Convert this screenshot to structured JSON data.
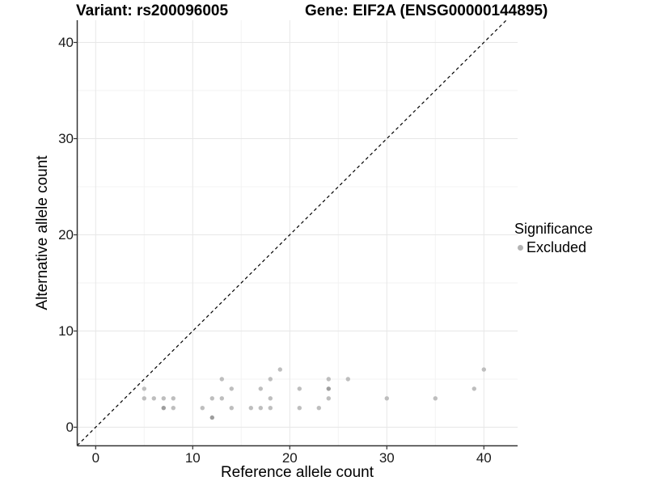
{
  "header": {
    "title_left": "Variant: rs200096005",
    "title_right": "Gene: EIF2A (ENSG00000144895)"
  },
  "chart_data": {
    "type": "scatter",
    "xlabel": "Reference allele count",
    "ylabel": "Alternative allele count",
    "xlim": [
      -1.9,
      43.5
    ],
    "ylim": [
      -1.95,
      42.3
    ],
    "x_ticks": [
      0,
      10,
      20,
      30,
      40
    ],
    "y_ticks": [
      0,
      10,
      20,
      30,
      40
    ],
    "x_minor_gridlines": [
      5,
      15,
      25,
      35
    ],
    "y_minor_gridlines": [
      5,
      15,
      25,
      35
    ],
    "grid": {
      "major_color": "#e7e7e7",
      "minor_color": "#f3f3f3",
      "background": "#ffffff"
    },
    "identity_line": {
      "equation": "y = x",
      "style": "dashed",
      "color": "#000000"
    },
    "series": [
      {
        "name": "Excluded",
        "color": "#bebebe",
        "overlap_color": "#9d9d9d",
        "points_note": "[x, y, n] where n=2 means visibly darker overplotted dot",
        "points": [
          [
            5,
            4,
            1
          ],
          [
            5,
            3,
            1
          ],
          [
            6,
            3,
            1
          ],
          [
            7,
            3,
            1
          ],
          [
            7,
            2,
            2
          ],
          [
            8,
            3,
            1
          ],
          [
            8,
            2,
            1
          ],
          [
            11,
            2,
            1
          ],
          [
            12,
            3,
            1
          ],
          [
            12,
            1,
            2
          ],
          [
            13,
            5,
            1
          ],
          [
            13,
            3,
            1
          ],
          [
            14,
            4,
            1
          ],
          [
            14,
            2,
            1
          ],
          [
            16,
            2,
            1
          ],
          [
            17,
            4,
            1
          ],
          [
            17,
            2,
            1
          ],
          [
            18,
            5,
            1
          ],
          [
            18,
            3,
            1
          ],
          [
            18,
            2,
            1
          ],
          [
            19,
            6,
            1
          ],
          [
            21,
            4,
            1
          ],
          [
            21,
            2,
            1
          ],
          [
            23,
            2,
            1
          ],
          [
            24,
            5,
            1
          ],
          [
            24,
            4,
            2
          ],
          [
            24,
            3,
            1
          ],
          [
            26,
            5,
            1
          ],
          [
            30,
            3,
            1
          ],
          [
            35,
            3,
            1
          ],
          [
            39,
            4,
            1
          ],
          [
            40,
            6,
            1
          ]
        ]
      }
    ],
    "legend": {
      "title": "Significance",
      "position": "right",
      "items": [
        {
          "label": "Excluded",
          "color": "#b3b3b3"
        }
      ]
    },
    "axis_color": "#333333"
  }
}
